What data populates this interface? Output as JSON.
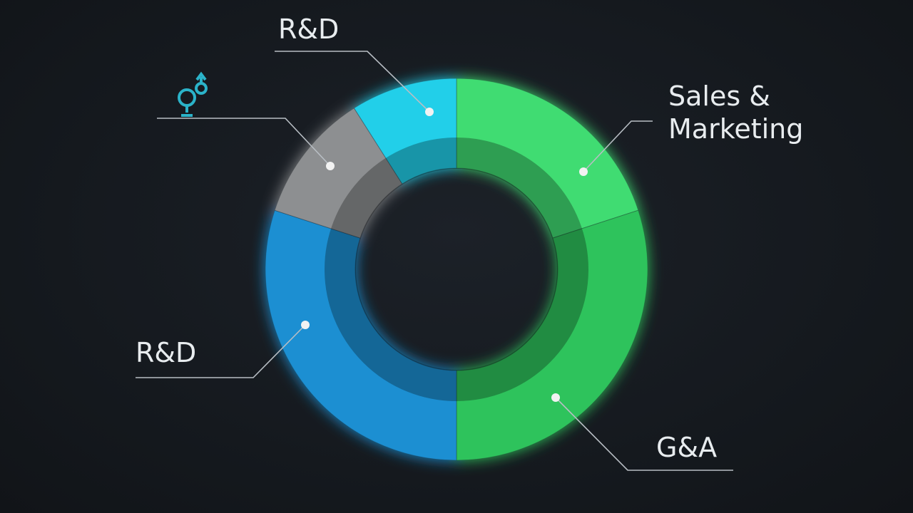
{
  "chart_data": {
    "type": "donut",
    "categories": [
      "Sales & Marketing",
      "G&A",
      "R&D",
      null,
      "R&D"
    ],
    "values": [
      20,
      30,
      30,
      11,
      9
    ],
    "colors": [
      "#3fdc72",
      "#2fc35c",
      "#1b8fd2",
      "#8d8f91",
      "#24cfe9"
    ]
  }
}
